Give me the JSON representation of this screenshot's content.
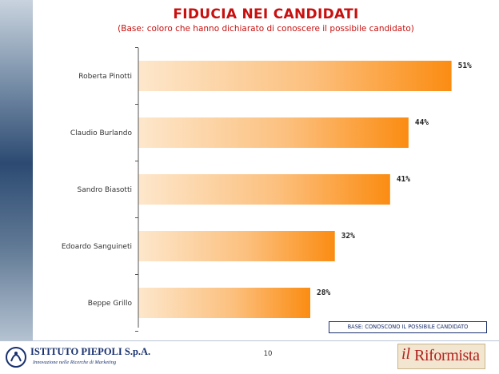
{
  "slide": {
    "title": "FIDUCIA NEI CANDIDATI",
    "subtitle": "(Base: coloro che hanno dichiarato di conoscere il possibile candidato)",
    "base_note": "BASE: CONOSCONO IL POSSIBILE CANDIDATO",
    "page_number": "10"
  },
  "logos": {
    "piepoli_name": "ISTITUTO PIEPOLI S.p.A.",
    "piepoli_tagline": "Innovazione nelle Ricerche di Marketing",
    "riformista_il": "il",
    "riformista_name": "Riformista"
  },
  "colors": {
    "title": "#c8100f",
    "bar_light": "#fde7cc",
    "bar_dark": "#fb8c12",
    "axis": "#555555"
  },
  "chart_data": {
    "type": "bar",
    "orientation": "horizontal",
    "categories": [
      "Roberta Pinotti",
      "Claudio Burlando",
      "Sandro Biasotti",
      "Edoardo Sanguineti",
      "Beppe Grillo"
    ],
    "values": [
      51,
      44,
      41,
      32,
      28
    ],
    "value_labels": [
      "51%",
      "44%",
      "41%",
      "32%",
      "28%"
    ],
    "xlim": [
      0,
      56
    ],
    "grid": false,
    "legend": "none"
  }
}
